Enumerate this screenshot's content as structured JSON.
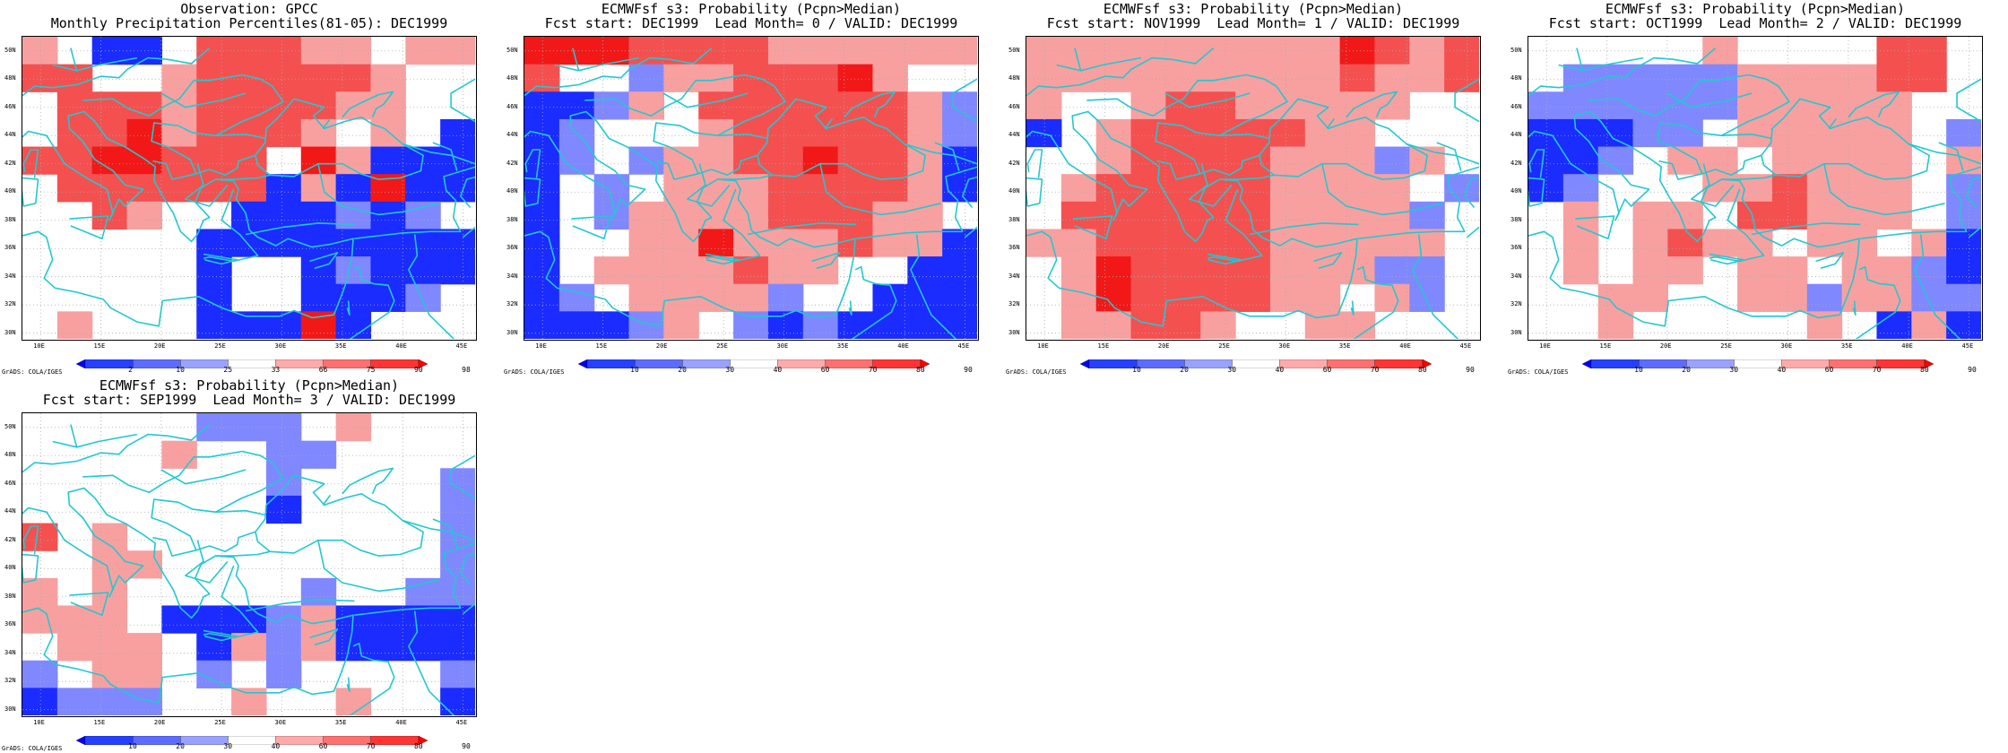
{
  "panels": [
    {
      "id": "obs",
      "title1": "Observation: GPCC",
      "title2": "Monthly Precipitation Percentiles(81-05): DEC1999",
      "colorbar_labels": [
        "2",
        "10",
        "25",
        "33",
        "66",
        "75",
        "90",
        "98"
      ],
      "grid": [
        "MWBBWRRRMMWMM",
        "RRWWMRRRRRMWW",
        "WRRRMRRRRMMWW",
        "WRRSMRRRMWMWB",
        "RRSSRRRWSMBBB",
        "WRRRRRRBMBSBB",
        "WWRMWWBBBLBLW",
        "WWWWWBBBBBBBB",
        "WWWWWBWWBLBBB",
        "WWWWWBWWBBBLW",
        "WMWWWBBBSBWWW"
      ]
    },
    {
      "id": "lead0",
      "title1": "ECMWFsf s3: Probability (Pcpn>Median)",
      "title2": "Fcst start: DEC1999  Lead Month= 0 / VALID: DEC1999",
      "colorbar_labels": [
        "10",
        "20",
        "30",
        "40",
        "60",
        "70",
        "80",
        "90"
      ],
      "grid": [
        "SSSRRRRMMMMMM",
        "RWWLMMRRRSMWW",
        "BBLMWRRRRRRML",
        "BLWWWMRRRRRML",
        "BLWLMMRRSRRMB",
        "BWLWMMMRRRRMB",
        "BWLMMMMRRRMMW",
        "BWWMMSMMMRMMB",
        "BWMMMMRMMWWBB",
        "BLWMMMMLWWBBB",
        "BBBLMWLBLBBBB"
      ]
    },
    {
      "id": "lead1",
      "title1": "ECMWFsf s3: Probability (Pcpn>Median)",
      "title2": "Fcst start: NOV1999  Lead Month= 1 / VALID: DEC1999",
      "colorbar_labels": [
        "10",
        "20",
        "30",
        "40",
        "60",
        "70",
        "80",
        "90"
      ],
      "grid": [
        "MMMMMMMMMSRMR",
        "MMMMMMMMMRMMR",
        "MWWMRRMMMMMWW",
        "BWMRRRRRMMWWW",
        "WWMRRRRMMMLMW",
        "WMRRRRRMMMMWL",
        "WRRRRRRMMMMLW",
        "MMRRRRRMMMMMW",
        "WMSRRRRMMMLLW",
        "WMSRRRRMMWMLW",
        "WMMRRMWWMMWWW"
      ]
    },
    {
      "id": "lead2",
      "title1": "ECMWFsf s3: Probability (Pcpn>Median)",
      "title2": "Fcst start: OCT1999  Lead Month= 2 / VALID: DEC1999",
      "colorbar_labels": [
        "10",
        "20",
        "30",
        "40",
        "60",
        "70",
        "80",
        "90"
      ],
      "grid": [
        "WWWWWMWWWWRRW",
        "WLLLLLMMMMRRW",
        "LLLLLLMMMMMWW",
        "BBBLLWMMMMMWL",
        "BBLWMMWMMMMWM",
        "BLWWWMMRMMMWL",
        "WMWMMWRRMMMWL",
        "WMWMRMMWMMWMB",
        "WMWMMWMMWMMLB",
        "WWMMWWMMLMMLL",
        "WWMWWWWWMWBMB"
      ]
    },
    {
      "id": "lead3",
      "title1": "ECMWFsf s3: Probability (Pcpn>Median)",
      "title2": "Fcst start: SEP1999  Lead Month= 3 / VALID: DEC1999",
      "colorbar_labels": [
        "10",
        "20",
        "30",
        "40",
        "60",
        "70",
        "80",
        "90"
      ],
      "grid": [
        "WWWWWLLLWMWWW",
        "WWWWMWWLLWWWW",
        "WWWWWWWLWWWWL",
        "WWWWWWWBWWWWL",
        "RWMWWWWWWWWWL",
        "WWMMWWWWWWWWL",
        "MWMWWWWWLWWLL",
        "MMMWBBBLMBBBB",
        "WMMMWBMLMBBBB",
        "LWMMWLWLWWWWL",
        "BLLLWWMWWMWWB"
      ]
    }
  ],
  "lat_labels": [
    "50N",
    "48N",
    "46N",
    "44N",
    "42N",
    "40N",
    "38N",
    "36N",
    "34N",
    "32N",
    "30N"
  ],
  "lon_labels": [
    "10E",
    "15E",
    "20E",
    "25E",
    "30E",
    "35E",
    "40E",
    "45E"
  ],
  "footer": "GrADS: COLA/IGES",
  "colors": {
    "B": "#1a2cff",
    "L": "#8088ff",
    "S": "#f21818",
    "R": "#f45050",
    "M": "#f8a0a0",
    "W": "#ffffff",
    "coast": "#22c8d0",
    "grid": "#aaaaaa",
    "colorbar": [
      "#0000ff",
      "#2640ff",
      "#5c6cff",
      "#9aa2ff",
      "#ffffff",
      "#ffaaaa",
      "#ff7070",
      "#ff3434",
      "#ff0000"
    ]
  }
}
